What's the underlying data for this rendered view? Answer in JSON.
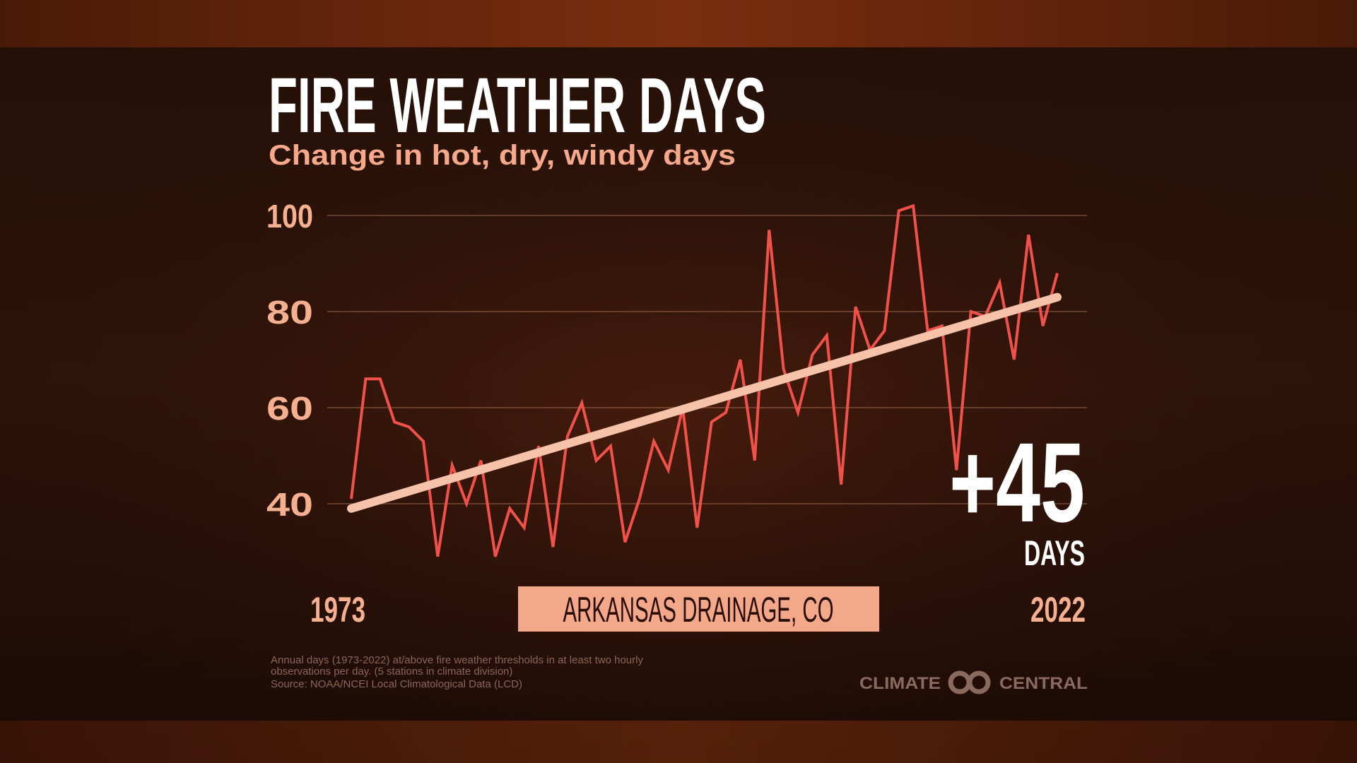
{
  "chart_data": {
    "type": "line",
    "title": "FIRE WEATHER DAYS",
    "subtitle": "Change in hot, dry, windy days",
    "x": [
      1973,
      1974,
      1975,
      1976,
      1977,
      1978,
      1979,
      1980,
      1981,
      1982,
      1983,
      1984,
      1985,
      1986,
      1987,
      1988,
      1989,
      1990,
      1991,
      1992,
      1993,
      1994,
      1995,
      1996,
      1997,
      1998,
      1999,
      2000,
      2001,
      2002,
      2003,
      2004,
      2005,
      2006,
      2007,
      2008,
      2009,
      2010,
      2011,
      2012,
      2013,
      2014,
      2015,
      2016,
      2017,
      2018,
      2019,
      2020,
      2021,
      2022
    ],
    "series": [
      {
        "color": "#f0524a",
        "values": [
          41,
          66,
          66,
          57,
          56,
          53,
          29,
          48,
          40,
          49,
          29,
          39,
          35,
          52,
          31,
          54,
          61,
          49,
          52,
          32,
          41,
          53,
          47,
          60,
          35,
          57,
          59,
          70,
          49,
          97,
          68,
          59,
          71,
          75,
          44,
          81,
          72,
          76,
          101,
          102,
          76,
          77,
          47,
          80,
          79,
          86,
          70,
          96,
          77,
          88
        ]
      }
    ],
    "trend": {
      "color": "#f7c2aa",
      "x": [
        1973,
        2022
      ],
      "values": [
        39,
        83
      ]
    },
    "xlim": [
      1973,
      2022
    ],
    "xticks": [
      1973,
      2022
    ],
    "ylim": [
      25,
      105
    ],
    "yticks": [
      40,
      60,
      80,
      100
    ],
    "grid": true,
    "annotation": {
      "value": "+45",
      "unit": "DAYS"
    },
    "location": "ARKANSAS DRAINAGE, CO",
    "footnote": [
      "Annual days (1973-2022) at/above fire weather thresholds in at least two hourly",
      "observations per day. (5 stations in climate division)",
      "Source: NOAA/NCEI Local Climatological Data (LCD)"
    ],
    "logo": {
      "left": "CLIMATE",
      "right": "CENTRAL"
    }
  }
}
